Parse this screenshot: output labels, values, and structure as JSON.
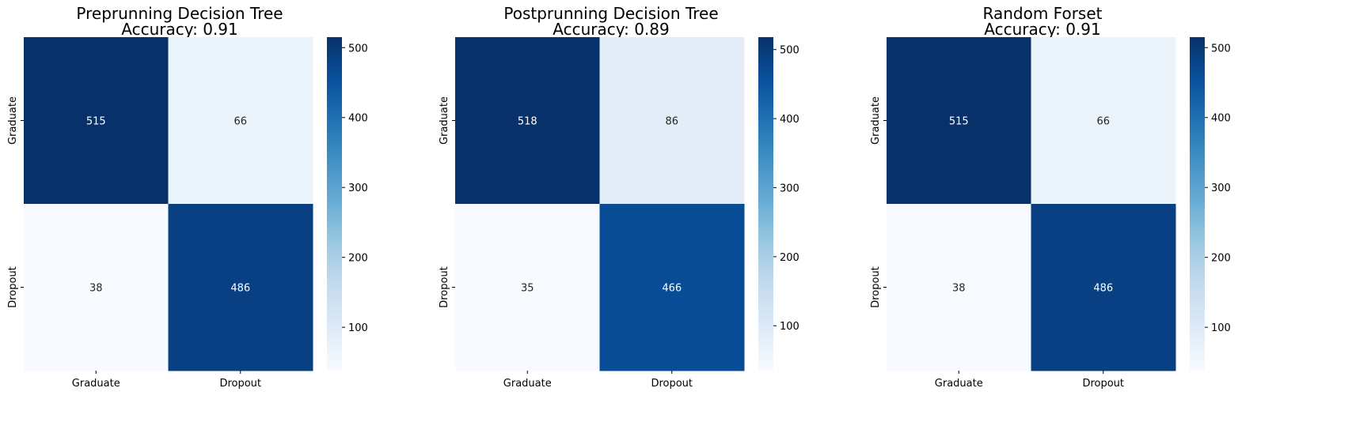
{
  "chart_data": [
    {
      "type": "heatmap",
      "title": "Preprunning Decision Tree",
      "subtitle": "Accuracy: 0.91",
      "row_labels": [
        "Graduate",
        "Dropout"
      ],
      "col_labels": [
        "Graduate",
        "Dropout"
      ],
      "values": [
        [
          515,
          66
        ],
        [
          38,
          486
        ]
      ],
      "colorbar_ticks": [
        100,
        200,
        300,
        400,
        500
      ],
      "colormap": "Blues",
      "vmin": 38,
      "vmax": 515
    },
    {
      "type": "heatmap",
      "title": "Postprunning Decision Tree",
      "subtitle": "Accuracy: 0.89",
      "row_labels": [
        "Graduate",
        "Dropout"
      ],
      "col_labels": [
        "Graduate",
        "Dropout"
      ],
      "values": [
        [
          518,
          86
        ],
        [
          35,
          466
        ]
      ],
      "colorbar_ticks": [
        100,
        200,
        300,
        400,
        500
      ],
      "colormap": "Blues",
      "vmin": 35,
      "vmax": 518
    },
    {
      "type": "heatmap",
      "title": "Random Forset",
      "subtitle": "Accuracy: 0.91",
      "row_labels": [
        "Graduate",
        "Dropout"
      ],
      "col_labels": [
        "Graduate",
        "Dropout"
      ],
      "values": [
        [
          515,
          66
        ],
        [
          38,
          486
        ]
      ],
      "colorbar_ticks": [
        100,
        200,
        300,
        400,
        500
      ],
      "colormap": "Blues",
      "vmin": 38,
      "vmax": 515
    }
  ]
}
